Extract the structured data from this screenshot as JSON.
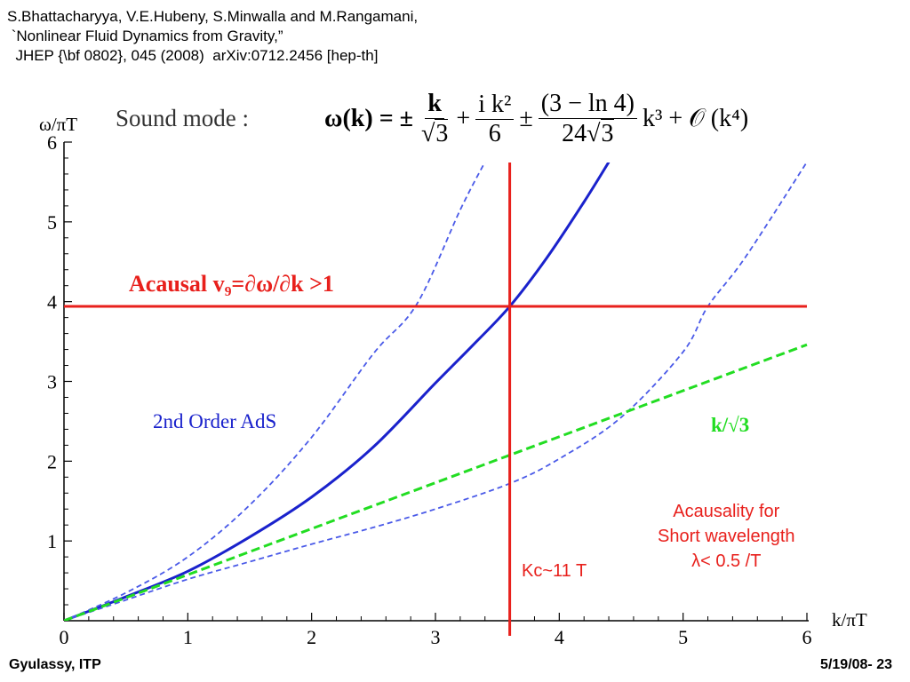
{
  "citation": {
    "line1": "S.Bhattacharyya, V.E.Hubeny, S.Minwalla and M.Rangamani,",
    "line2": " `Nonlinear Fluid Dynamics from Gravity,”",
    "line3": "  JHEP {\\bf 0802}, 045 (2008)  arXiv:0712.2456 [hep-th]"
  },
  "formula": {
    "label": "Sound mode :",
    "lhs": "ω(k) = ±",
    "t1_num": "k",
    "t1_den": "3",
    "plus": "+",
    "t2_num": "i k²",
    "t2_den": "6",
    "pm": "±",
    "t3_num": "(3 − ln 4)",
    "t3_den_pre": "24",
    "t3_den_rad": "3",
    "tail": "k³ + 𝒪 (k⁴)"
  },
  "annotations": {
    "y_unit": "ω/πT",
    "x_unit": "k/πT",
    "acausal_line": "Acausal v₉=∂ω/∂k >1",
    "order_label": "2nd Order AdS",
    "ksq_label": "k/√3",
    "kc_label": "Kᴄ~11 T",
    "acausality_1": "Acausality for",
    "acausality_2": "Short wavelength",
    "acausality_3": "λ< 0.5 /T"
  },
  "footer": {
    "left": "Gyulassy, ITP",
    "right": "5/19/08-   23"
  },
  "colors": {
    "red": "#e8201c",
    "blue": "#1a22cc",
    "dashed_blue": "#4a5ae8",
    "green": "#22dd22"
  },
  "chart_data": {
    "type": "line",
    "xlim": [
      0,
      6
    ],
    "ylim": [
      0,
      6
    ],
    "xticks": [
      "0",
      "1",
      "2",
      "3",
      "4",
      "5",
      "6"
    ],
    "yticks": [
      "1",
      "2",
      "3",
      "4",
      "5",
      "6"
    ],
    "horizontal_line_y": 3.94,
    "vertical_line_x": 3.6,
    "series": [
      {
        "style": "solid-blue",
        "x": [
          0,
          0.5,
          1,
          1.5,
          2,
          2.5,
          3,
          3.3,
          3.6,
          3.9,
          4.2,
          4.4
        ],
        "y": [
          0,
          0.3,
          0.62,
          1.05,
          1.55,
          2.18,
          2.98,
          3.45,
          3.94,
          4.55,
          5.25,
          5.75
        ]
      },
      {
        "style": "dashed-blue",
        "x": [
          0,
          0.5,
          1,
          1.5,
          2,
          2.5,
          2.85,
          3.2,
          3.4
        ],
        "y": [
          0,
          0.35,
          0.8,
          1.45,
          2.3,
          3.35,
          3.97,
          5.15,
          5.75
        ]
      },
      {
        "style": "dashed-blue",
        "x": [
          0,
          0.5,
          1,
          1.5,
          2,
          2.5,
          3,
          3.6,
          4,
          4.5,
          5,
          5.2,
          5.5,
          6
        ],
        "y": [
          0,
          0.26,
          0.52,
          0.74,
          0.96,
          1.17,
          1.4,
          1.72,
          2.03,
          2.55,
          3.37,
          3.94,
          4.55,
          5.75
        ]
      },
      {
        "style": "dashed-green",
        "x": [
          0,
          6
        ],
        "y": [
          0,
          3.46
        ]
      }
    ]
  }
}
